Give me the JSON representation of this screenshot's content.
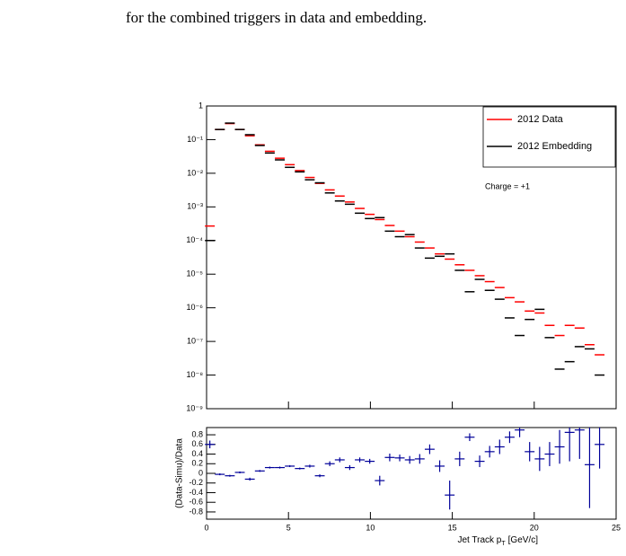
{
  "text": "for the combined triggers in data and embedding.",
  "chart_data": [
    {
      "type": "errorbar",
      "log_y": true,
      "xlim": [
        0,
        25
      ],
      "ylim": [
        1e-09,
        1
      ],
      "yticks": [
        {
          "value": 1e-09,
          "label": "10⁻⁹"
        },
        {
          "value": 1e-08,
          "label": "10⁻⁸"
        },
        {
          "value": 1e-07,
          "label": "10⁻⁷"
        },
        {
          "value": 1e-06,
          "label": "10⁻⁶"
        },
        {
          "value": 1e-05,
          "label": "10⁻⁵"
        },
        {
          "value": 0.0001,
          "label": "10⁻⁴"
        },
        {
          "value": 0.001,
          "label": "10⁻³"
        },
        {
          "value": 0.01,
          "label": "10⁻²"
        },
        {
          "value": 0.1,
          "label": "10⁻¹"
        },
        1
      ],
      "xerr": 0.3,
      "legend": "top-right",
      "annotation": "Charge = +1",
      "x": [
        0.2,
        0.81,
        1.42,
        2.03,
        2.64,
        3.25,
        3.86,
        4.47,
        5.08,
        5.69,
        6.3,
        6.91,
        7.52,
        8.13,
        8.74,
        9.35,
        9.96,
        10.57,
        11.18,
        11.79,
        12.4,
        13.01,
        13.62,
        14.23,
        14.84,
        15.45,
        16.06,
        16.67,
        17.28,
        17.89,
        18.5,
        19.11,
        19.72,
        20.33,
        20.94,
        21.55,
        22.16,
        22.77,
        23.38,
        23.99
      ],
      "series": [
        {
          "name": "2012 Data",
          "color": "#ff0000",
          "values": [
            0.00027,
            0.2,
            0.3,
            0.2,
            0.13,
            0.07,
            0.045,
            0.028,
            0.018,
            0.012,
            0.0075,
            0.005,
            0.0032,
            0.0021,
            0.0014,
            0.0009,
            0.0006,
            0.00042,
            0.00028,
            0.00019,
            0.00013,
            9e-05,
            6e-05,
            4e-05,
            2.8e-05,
            1.9e-05,
            1.3e-05,
            9e-06,
            6e-06,
            4e-06,
            2e-06,
            1.5e-06,
            8e-07,
            7e-07,
            3e-07,
            1.5e-07,
            3e-07,
            2.5e-07,
            8e-08,
            4e-08
          ]
        },
        {
          "name": "2012 Embedding",
          "color": "#000000",
          "values": [
            0.0001,
            0.2,
            0.31,
            0.2,
            0.14,
            0.067,
            0.04,
            0.025,
            0.015,
            0.011,
            0.0064,
            0.0052,
            0.0026,
            0.0015,
            0.0012,
            0.00065,
            0.00045,
            0.00048,
            0.00019,
            0.00013,
            0.00015,
            6e-05,
            3e-05,
            3.4e-05,
            4e-05,
            1.3e-05,
            3e-06,
            7e-06,
            3.3e-06,
            1.8e-06,
            5e-07,
            1.5e-07,
            4.5e-07,
            9e-07,
            1.3e-07,
            1.5e-08,
            2.5e-08,
            7e-08,
            6e-08,
            1e-08
          ]
        }
      ]
    },
    {
      "type": "ratio",
      "xlim": [
        0,
        25
      ],
      "ylim": [
        -0.95,
        0.95
      ],
      "xticks": [
        0,
        5,
        10,
        15,
        20,
        25
      ],
      "yticks": [
        -0.8,
        -0.6,
        -0.4,
        -0.2,
        0,
        0.2,
        0.4,
        0.6,
        0.8
      ],
      "y_label": "(Data-Simu)/Data",
      "x_label": [
        "Jet Track p",
        "T",
        "[GeV/c]"
      ],
      "xerr": 0.3,
      "color": "#000099",
      "x": [
        0.2,
        0.81,
        1.42,
        2.03,
        2.64,
        3.25,
        3.86,
        4.47,
        5.08,
        5.69,
        6.3,
        6.91,
        7.52,
        8.13,
        8.74,
        9.35,
        9.96,
        10.57,
        11.18,
        11.79,
        12.4,
        13.01,
        13.62,
        14.23,
        14.84,
        15.45,
        16.06,
        16.67,
        17.28,
        17.89,
        18.5,
        19.11,
        19.72,
        20.33,
        20.94,
        21.55,
        22.16,
        22.77,
        23.38,
        23.99
      ],
      "values": [
        0.6,
        -0.02,
        -0.05,
        0.02,
        -0.12,
        0.05,
        0.12,
        0.12,
        0.15,
        0.1,
        0.15,
        -0.05,
        0.2,
        0.28,
        0.12,
        0.28,
        0.25,
        -0.15,
        0.33,
        0.32,
        0.28,
        0.3,
        0.5,
        0.15,
        -0.45,
        0.3,
        0.75,
        0.25,
        0.45,
        0.55,
        0.75,
        0.9,
        0.45,
        0.3,
        0.4,
        0.55,
        0.85,
        0.9,
        0.18,
        0.6
      ],
      "errors": [
        0.08,
        0.02,
        0.02,
        0.02,
        0.03,
        0.02,
        0.02,
        0.02,
        0.02,
        0.02,
        0.03,
        0.03,
        0.05,
        0.05,
        0.05,
        0.05,
        0.05,
        0.1,
        0.08,
        0.07,
        0.08,
        0.1,
        0.1,
        0.12,
        0.3,
        0.15,
        0.08,
        0.12,
        0.12,
        0.15,
        0.12,
        0.15,
        0.2,
        0.25,
        0.25,
        0.35,
        0.6,
        0.6,
        0.9,
        0.5
      ]
    }
  ]
}
